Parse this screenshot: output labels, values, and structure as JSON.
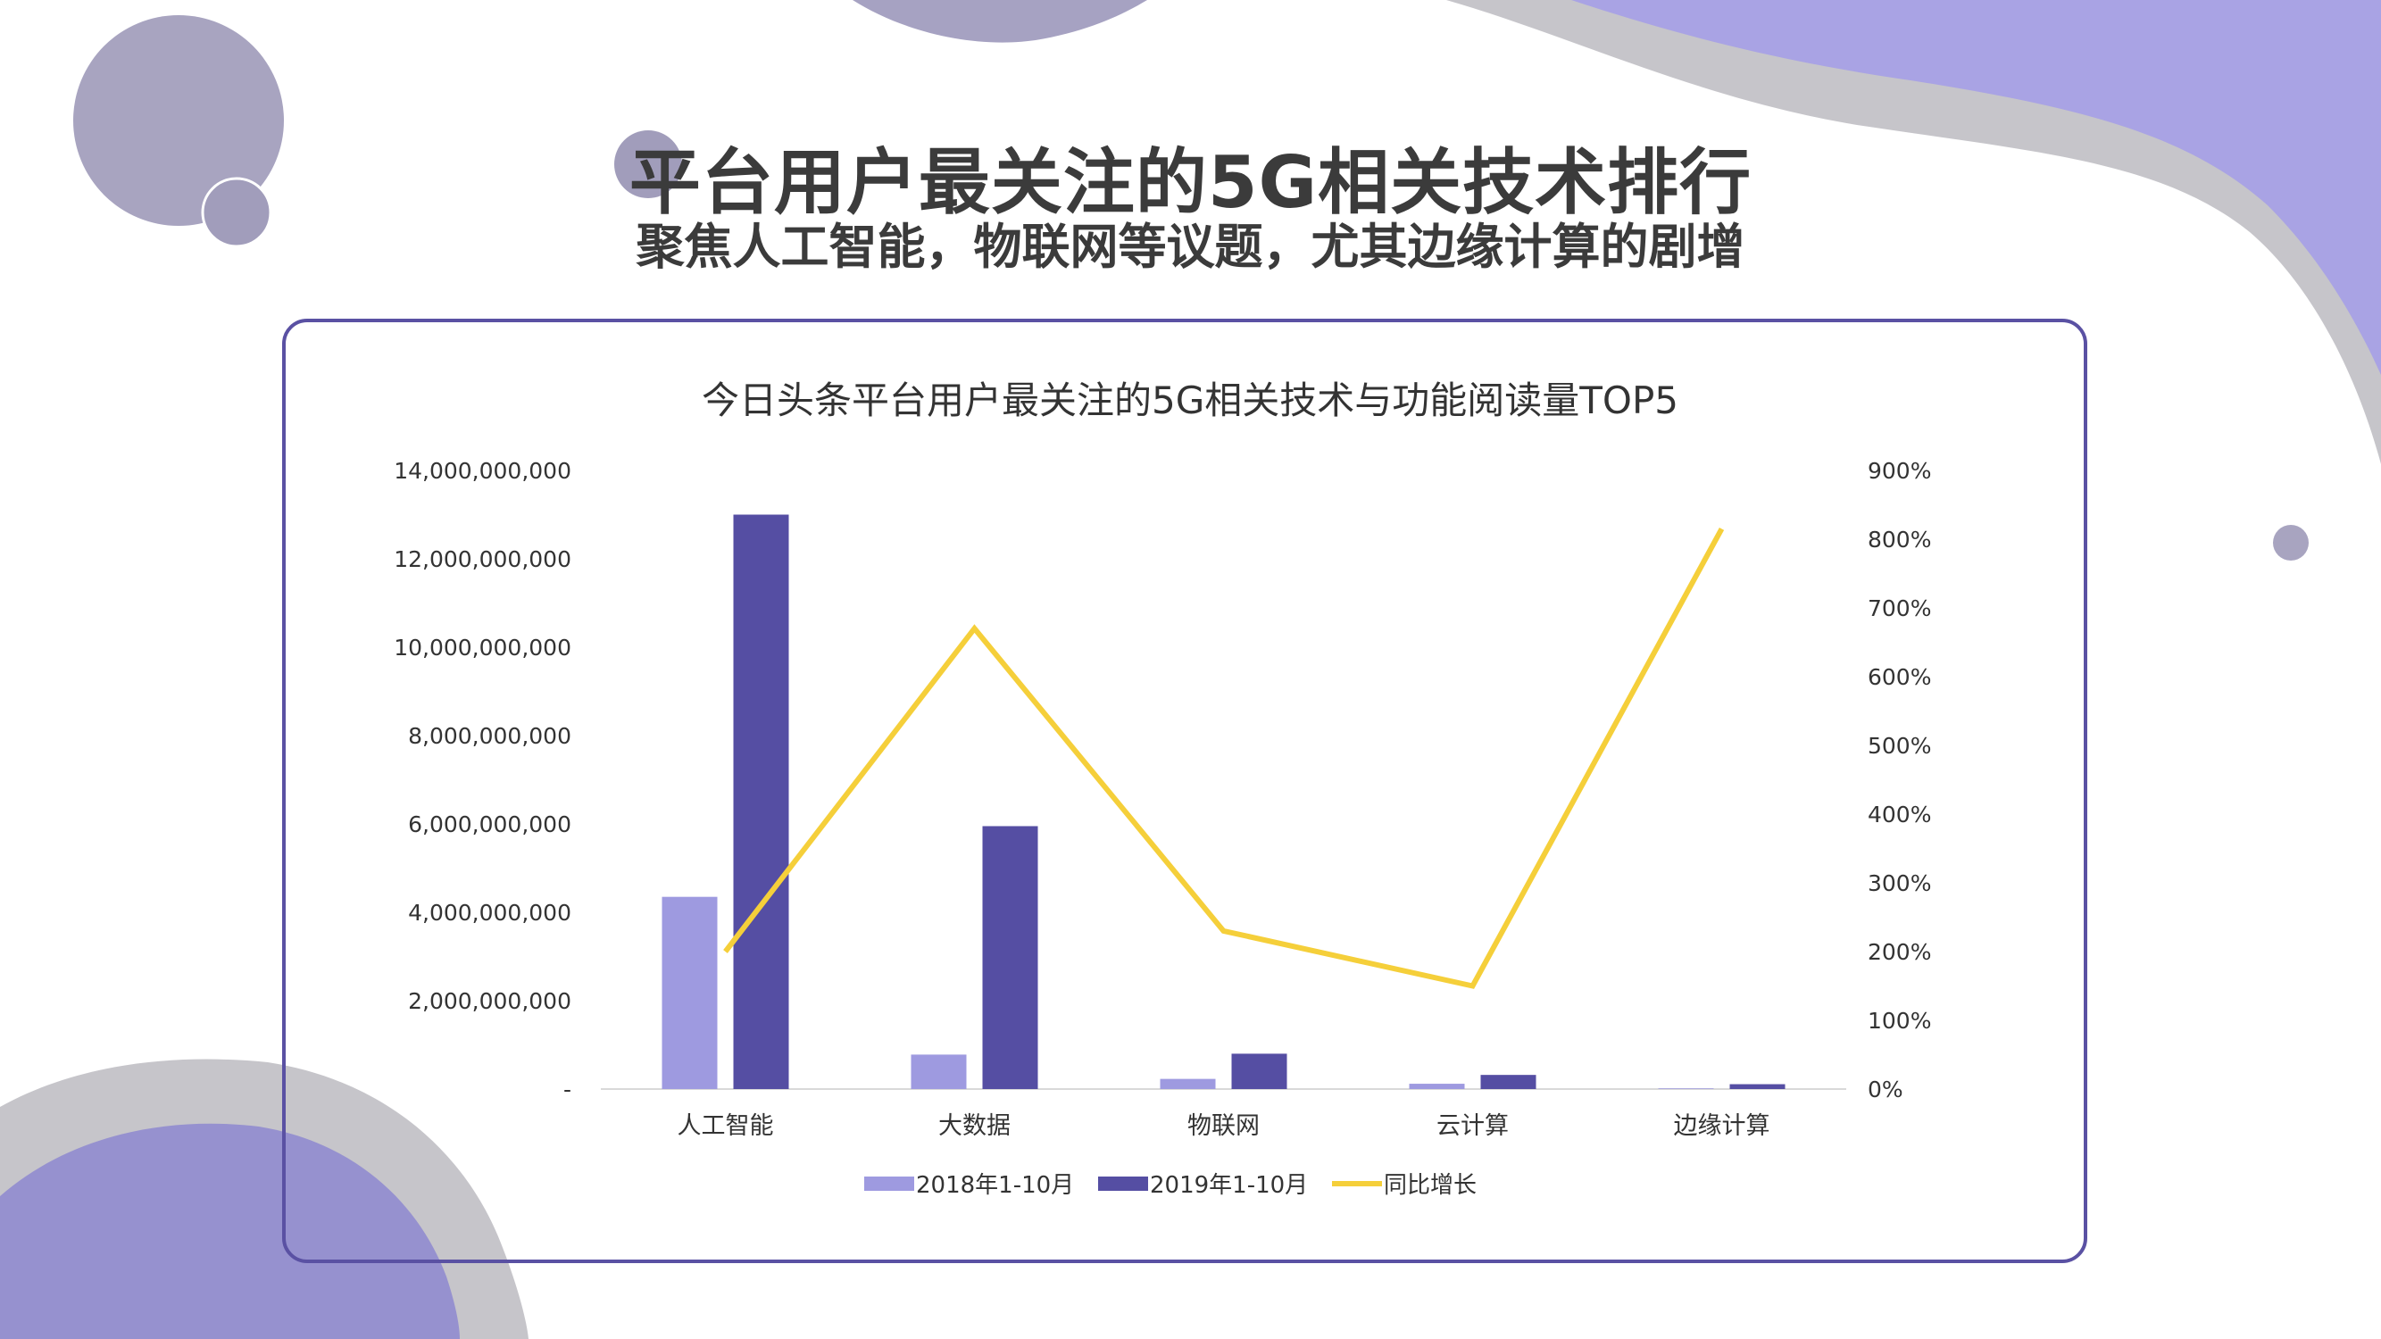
{
  "slide": {
    "title": "平台用户最关注的5G相关技术排行",
    "subtitle": "聚焦人工智能，物联网等议题，尤其边缘计算的剧增"
  },
  "colors": {
    "series_2018": "#9e9ae0",
    "series_2019": "#554ea3",
    "growth_line": "#f5cf3a",
    "card_border": "#5a51a3",
    "blob_grey": "#c6c5ca",
    "blob_purple": "#9d97d8",
    "circle_grey": "#a29fbd"
  },
  "chart_data": {
    "type": "bar",
    "title": "今日头条平台用户最关注的5G相关技术与功能阅读量TOP5",
    "categories": [
      "人工智能",
      "大数据",
      "物联网",
      "云计算",
      "边缘计算"
    ],
    "series": [
      {
        "name": "2018年1-10月",
        "kind": "bar",
        "axis": "left",
        "values": [
          4350000000,
          780000000,
          230000000,
          120000000,
          15000000
        ]
      },
      {
        "name": "2019年1-10月",
        "kind": "bar",
        "axis": "left",
        "values": [
          13000000000,
          5950000000,
          800000000,
          320000000,
          110000000
        ]
      },
      {
        "name": "同比增长",
        "kind": "line",
        "axis": "right",
        "values": [
          2.0,
          6.7,
          2.3,
          1.5,
          8.15
        ]
      }
    ],
    "y_left": {
      "min": 0,
      "max": 14000000000,
      "ticks": [
        "-",
        "2,000,000,000",
        "4,000,000,000",
        "6,000,000,000",
        "8,000,000,000",
        "10,000,000,000",
        "12,000,000,000",
        "14,000,000,000"
      ]
    },
    "y_right": {
      "min": 0,
      "max": 9,
      "ticks": [
        "0%",
        "100%",
        "200%",
        "300%",
        "400%",
        "500%",
        "600%",
        "700%",
        "800%",
        "900%"
      ]
    },
    "grid": false,
    "legend": "bottom"
  }
}
